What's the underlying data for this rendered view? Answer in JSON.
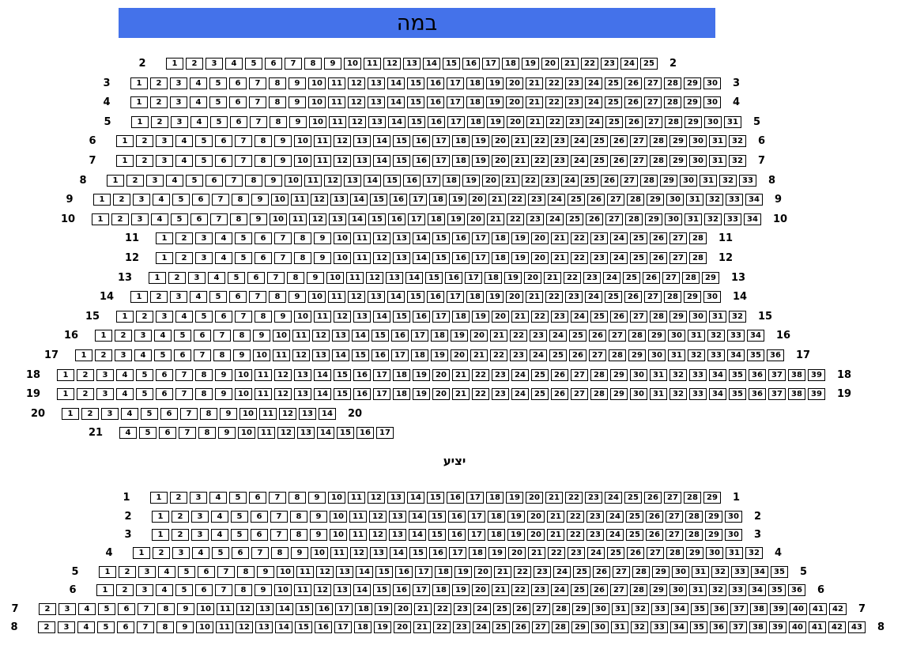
{
  "stage": {
    "label": "במה",
    "banner_color": "#4472EA"
  },
  "balcony": {
    "title": "יציע",
    "rows": [
      {
        "row": 1,
        "first_seat": 1,
        "last_seat": 29,
        "left_label": true,
        "right_label": true
      },
      {
        "row": 2,
        "first_seat": 1,
        "last_seat": 30,
        "left_label": true,
        "right_label": true
      },
      {
        "row": 3,
        "first_seat": 1,
        "last_seat": 30,
        "left_label": true,
        "right_label": true
      },
      {
        "row": 4,
        "first_seat": 1,
        "last_seat": 32,
        "left_label": true,
        "right_label": true
      },
      {
        "row": 5,
        "first_seat": 1,
        "last_seat": 35,
        "left_label": true,
        "right_label": true
      },
      {
        "row": 6,
        "first_seat": 1,
        "last_seat": 36,
        "left_label": true,
        "right_label": true
      },
      {
        "row": 7,
        "first_seat": 2,
        "last_seat": 42,
        "left_label": true,
        "right_label": true
      },
      {
        "row": 8,
        "first_seat": 2,
        "last_seat": 43,
        "left_label": true,
        "right_label": true
      }
    ]
  },
  "main_hall": {
    "rows": [
      {
        "row": 2,
        "first_seat": 1,
        "last_seat": 25,
        "left_label": true,
        "right_label": true
      },
      {
        "row": 3,
        "first_seat": 1,
        "last_seat": 30,
        "left_label": true,
        "right_label": true
      },
      {
        "row": 4,
        "first_seat": 1,
        "last_seat": 30,
        "left_label": true,
        "right_label": true
      },
      {
        "row": 5,
        "first_seat": 1,
        "last_seat": 31,
        "left_label": true,
        "right_label": true
      },
      {
        "row": 6,
        "first_seat": 1,
        "last_seat": 32,
        "left_label": true,
        "right_label": true
      },
      {
        "row": 7,
        "first_seat": 1,
        "last_seat": 32,
        "left_label": true,
        "right_label": true
      },
      {
        "row": 8,
        "first_seat": 1,
        "last_seat": 33,
        "left_label": true,
        "right_label": true
      },
      {
        "row": 9,
        "first_seat": 1,
        "last_seat": 34,
        "left_label": true,
        "right_label": true
      },
      {
        "row": 10,
        "first_seat": 1,
        "last_seat": 34,
        "left_label": true,
        "right_label": true
      },
      {
        "row": 11,
        "first_seat": 1,
        "last_seat": 28,
        "left_label": true,
        "right_label": true
      },
      {
        "row": 12,
        "first_seat": 1,
        "last_seat": 28,
        "left_label": true,
        "right_label": true
      },
      {
        "row": 13,
        "first_seat": 1,
        "last_seat": 29,
        "left_label": true,
        "right_label": true
      },
      {
        "row": 14,
        "first_seat": 1,
        "last_seat": 30,
        "left_label": true,
        "right_label": true
      },
      {
        "row": 15,
        "first_seat": 1,
        "last_seat": 32,
        "left_label": true,
        "right_label": true
      },
      {
        "row": 16,
        "first_seat": 1,
        "last_seat": 34,
        "left_label": true,
        "right_label": true
      },
      {
        "row": 17,
        "first_seat": 1,
        "last_seat": 36,
        "left_label": true,
        "right_label": true
      },
      {
        "row": 18,
        "first_seat": 1,
        "last_seat": 39,
        "left_label": true,
        "right_label": true
      },
      {
        "row": 19,
        "first_seat": 1,
        "last_seat": 39,
        "left_label": true,
        "right_label": true
      },
      {
        "row": 20,
        "first_seat": 1,
        "last_seat": 14,
        "left_label": true,
        "right_label": true
      },
      {
        "row": 21,
        "first_seat": 4,
        "last_seat": 17,
        "left_label": true,
        "right_label": false
      }
    ]
  }
}
